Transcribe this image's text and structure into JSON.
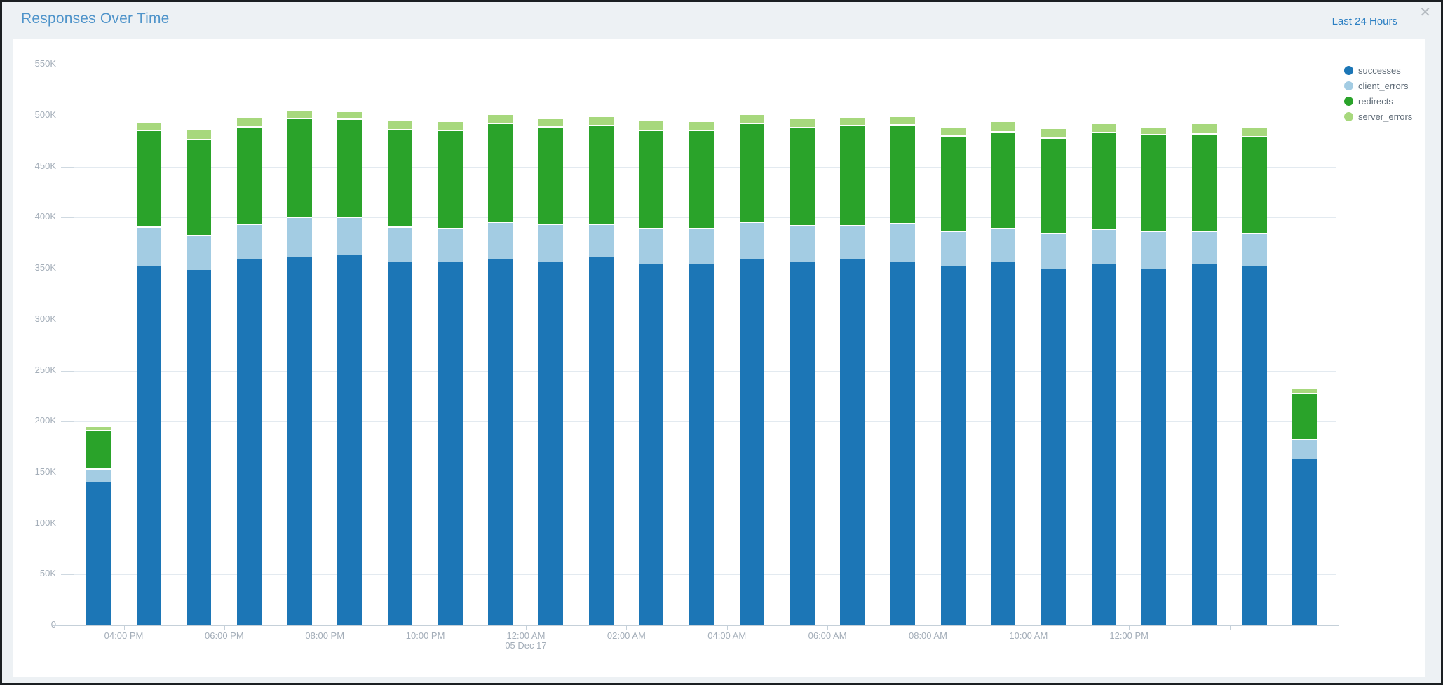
{
  "window": {
    "close_icon": "✕"
  },
  "header": {
    "title": "Responses Over Time",
    "time_range": "Last 24 Hours"
  },
  "palette": {
    "title_blue": "#4f94ca",
    "link_blue": "#2b7fc3",
    "axis_text": "#a4aeb9",
    "legend_text": "#5f6b77",
    "gridline": "#e3eaf0",
    "axis_line": "#c5d0d9"
  },
  "chart_data": {
    "type": "bar",
    "stacked": true,
    "grid": "horizontal",
    "legend_position": "top-right",
    "title": "Responses Over Time",
    "xlabel": "",
    "ylabel": "",
    "ylim": [
      0,
      550000
    ],
    "y_axis": {
      "tick_labels": [
        "0",
        "50K",
        "100K",
        "150K",
        "200K",
        "250K",
        "300K",
        "350K",
        "400K",
        "450K",
        "500K",
        "550K"
      ],
      "tick_values": [
        0,
        50000,
        100000,
        150000,
        200000,
        250000,
        300000,
        350000,
        400000,
        450000,
        500000,
        550000
      ]
    },
    "x_axis": {
      "ticks": [
        {
          "label": "04:00 PM"
        },
        {
          "label": "06:00 PM"
        },
        {
          "label": "08:00 PM"
        },
        {
          "label": "10:00 PM"
        },
        {
          "label": "12:00 AM",
          "sub": "05 Dec 17"
        },
        {
          "label": "02:00 AM"
        },
        {
          "label": "04:00 AM"
        },
        {
          "label": "06:00 AM"
        },
        {
          "label": "08:00 AM"
        },
        {
          "label": "10:00 AM"
        },
        {
          "label": "12:00 PM"
        },
        {
          "label": ""
        }
      ]
    },
    "categories": [
      "3:00 PM",
      "4:00 PM",
      "5:00 PM",
      "6:00 PM",
      "7:00 PM",
      "8:00 PM",
      "9:00 PM",
      "10:00 PM",
      "11:00 PM",
      "12:00 AM",
      "1:00 AM",
      "2:00 AM",
      "3:00 AM",
      "4:00 AM",
      "5:00 AM",
      "6:00 AM",
      "7:00 AM",
      "8:00 AM",
      "9:00 AM",
      "10:00 AM",
      "11:00 AM",
      "12:00 PM",
      "1:00 PM",
      "2:00 PM",
      "3:00 PM"
    ],
    "series": [
      {
        "name": "successes",
        "color": "#1c76b6",
        "values": [
          141000,
          353000,
          349000,
          360000,
          362000,
          363000,
          356000,
          357000,
          360000,
          356000,
          361000,
          355000,
          354000,
          360000,
          356000,
          359000,
          357000,
          353000,
          357000,
          350000,
          354000,
          350000,
          355000,
          353000,
          164000
        ]
      },
      {
        "name": "client_errors",
        "color": "#a3cce3",
        "values": [
          13000,
          38000,
          34000,
          34000,
          39000,
          38000,
          35000,
          33000,
          36000,
          38000,
          33000,
          35000,
          36000,
          36000,
          37000,
          34000,
          38000,
          34000,
          33000,
          35000,
          35000,
          37000,
          32000,
          32000,
          19000
        ]
      },
      {
        "name": "redirects",
        "color": "#2aa32a",
        "values": [
          38000,
          95000,
          94000,
          96000,
          97000,
          96000,
          96000,
          96000,
          97000,
          96000,
          97000,
          96000,
          96000,
          97000,
          96000,
          98000,
          97000,
          94000,
          95000,
          94000,
          95000,
          95000,
          96000,
          95000,
          45000
        ]
      },
      {
        "name": "server_errors",
        "color": "#a7d87d",
        "values": [
          4000,
          8000,
          10000,
          9000,
          8000,
          8000,
          9000,
          9000,
          9000,
          8000,
          9000,
          10000,
          9000,
          9000,
          9000,
          8000,
          8000,
          9000,
          10000,
          9000,
          9000,
          8000,
          10000,
          9000,
          5000
        ]
      }
    ]
  }
}
